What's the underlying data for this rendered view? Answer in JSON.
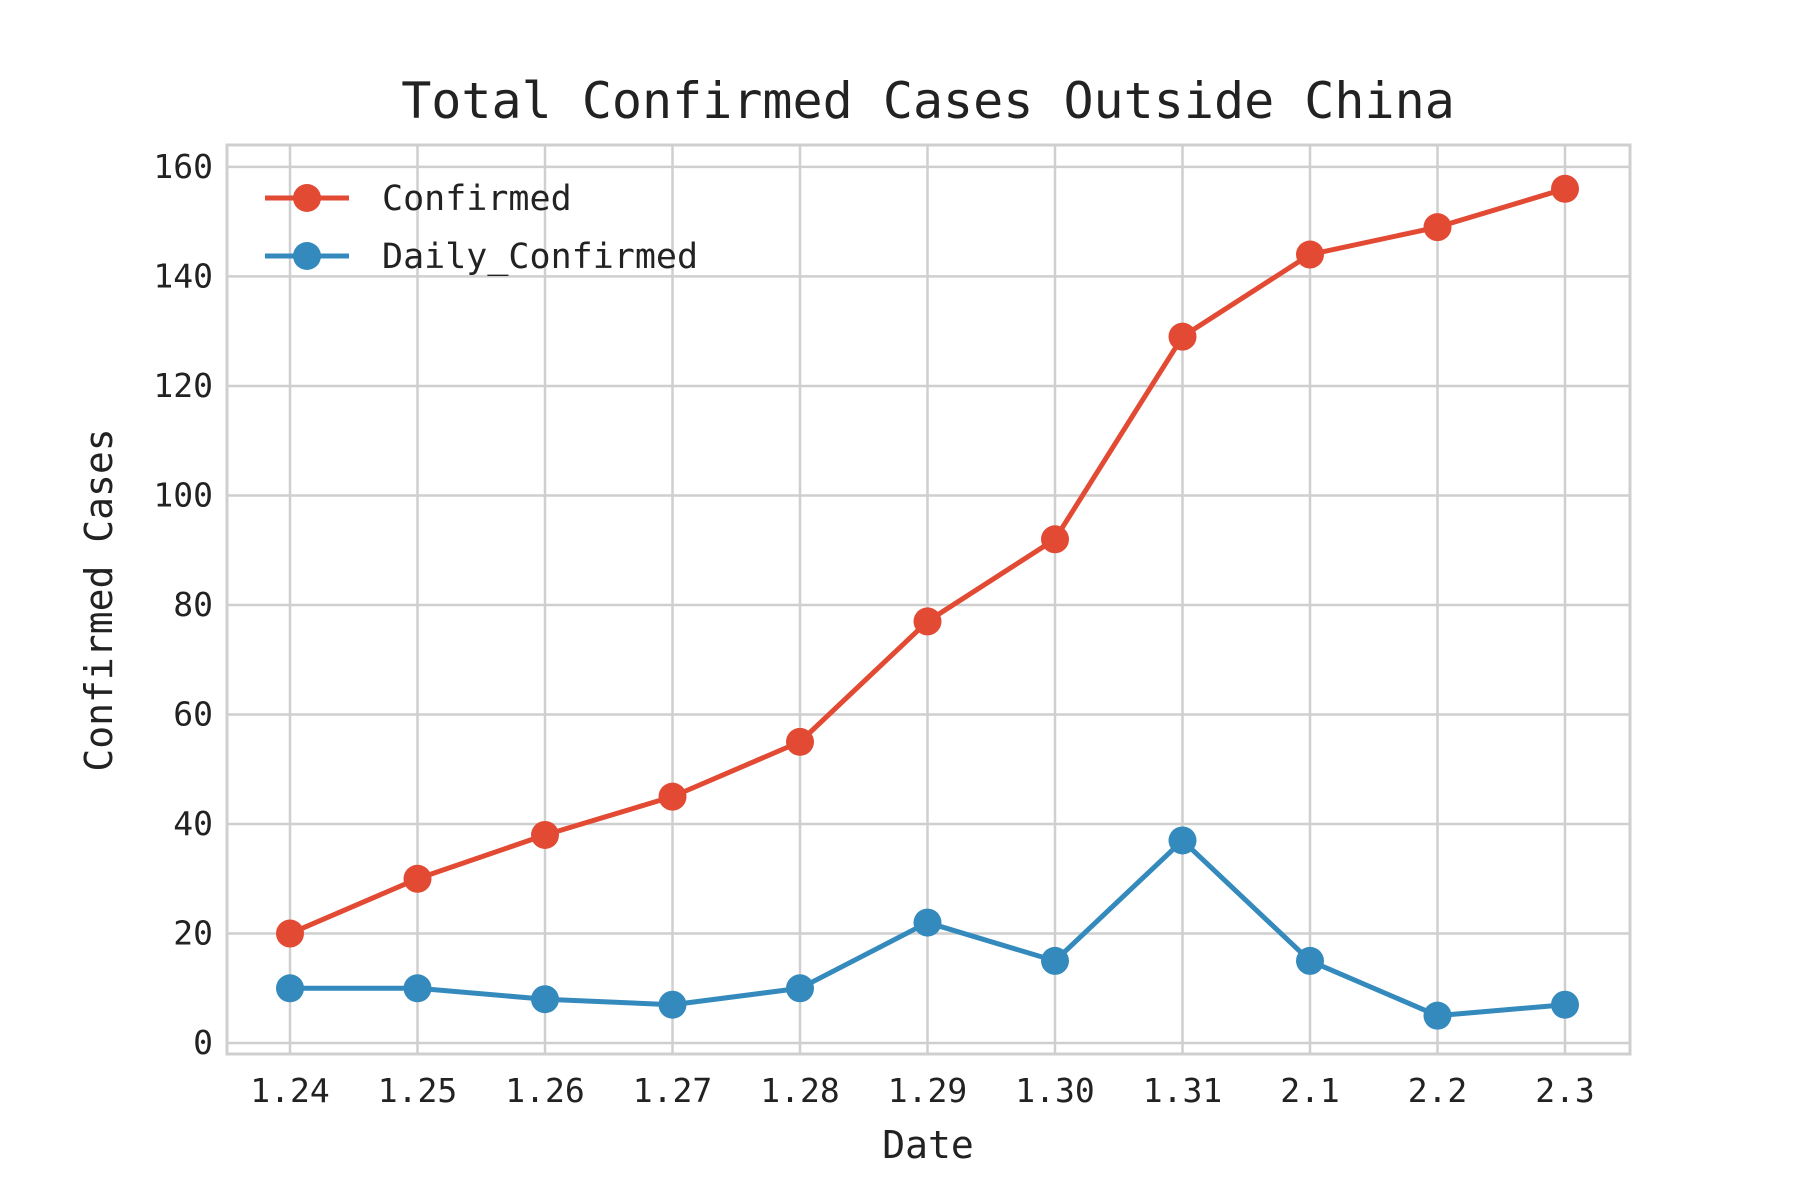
{
  "chart_data": {
    "type": "line",
    "title": "Total Confirmed Cases Outside China",
    "xlabel": "Date",
    "ylabel": "Confirmed Cases",
    "categories": [
      "1.24",
      "1.25",
      "1.26",
      "1.27",
      "1.28",
      "1.29",
      "1.30",
      "1.31",
      "2.1",
      "2.2",
      "2.3"
    ],
    "ylim": [
      -2,
      164
    ],
    "yticks": [
      0,
      20,
      40,
      60,
      80,
      100,
      120,
      140,
      160
    ],
    "grid": true,
    "legend_position": "top-left",
    "series": [
      {
        "name": "Confirmed",
        "color": "#E24A33",
        "values": [
          20,
          30,
          38,
          45,
          55,
          77,
          92,
          129,
          144,
          149,
          156
        ]
      },
      {
        "name": "Daily_Confirmed",
        "color": "#348ABD",
        "values": [
          10,
          10,
          8,
          7,
          10,
          22,
          15,
          37,
          15,
          5,
          7
        ]
      }
    ]
  }
}
